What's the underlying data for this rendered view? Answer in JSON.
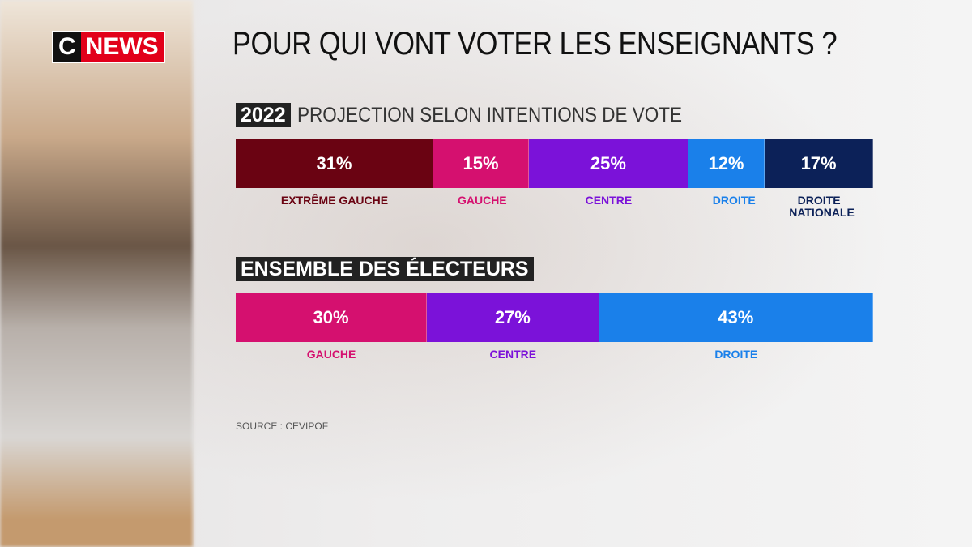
{
  "logo": {
    "c": "C",
    "news": "NEWS"
  },
  "title": "POUR QUI VONT VOTER LES ENSEIGNANTS ?",
  "chart_data": [
    {
      "type": "bar",
      "stacked": true,
      "orientation": "horizontal",
      "badge": "2022",
      "title": "PROJECTION SELON INTENTIONS DE VOTE",
      "categories": [
        "EXTRÊME GAUCHE",
        "GAUCHE",
        "CENTRE",
        "DROITE",
        "DROITE NATIONALE"
      ],
      "values": [
        31,
        15,
        25,
        12,
        17
      ],
      "value_labels": [
        "31%",
        "15%",
        "25%",
        "12%",
        "17%"
      ],
      "colors": [
        "#6a0312",
        "#d5106f",
        "#7b12d9",
        "#1a80ea",
        "#0c2158"
      ]
    },
    {
      "type": "bar",
      "stacked": true,
      "orientation": "horizontal",
      "badge": "ENSEMBLE DES ÉLECTEURS",
      "categories": [
        "GAUCHE",
        "CENTRE",
        "DROITE"
      ],
      "values": [
        30,
        27,
        43
      ],
      "value_labels": [
        "30%",
        "27%",
        "43%"
      ],
      "colors": [
        "#d5106f",
        "#7b12d9",
        "#1a80ea"
      ]
    }
  ],
  "source": "SOURCE : CEVIPOF"
}
